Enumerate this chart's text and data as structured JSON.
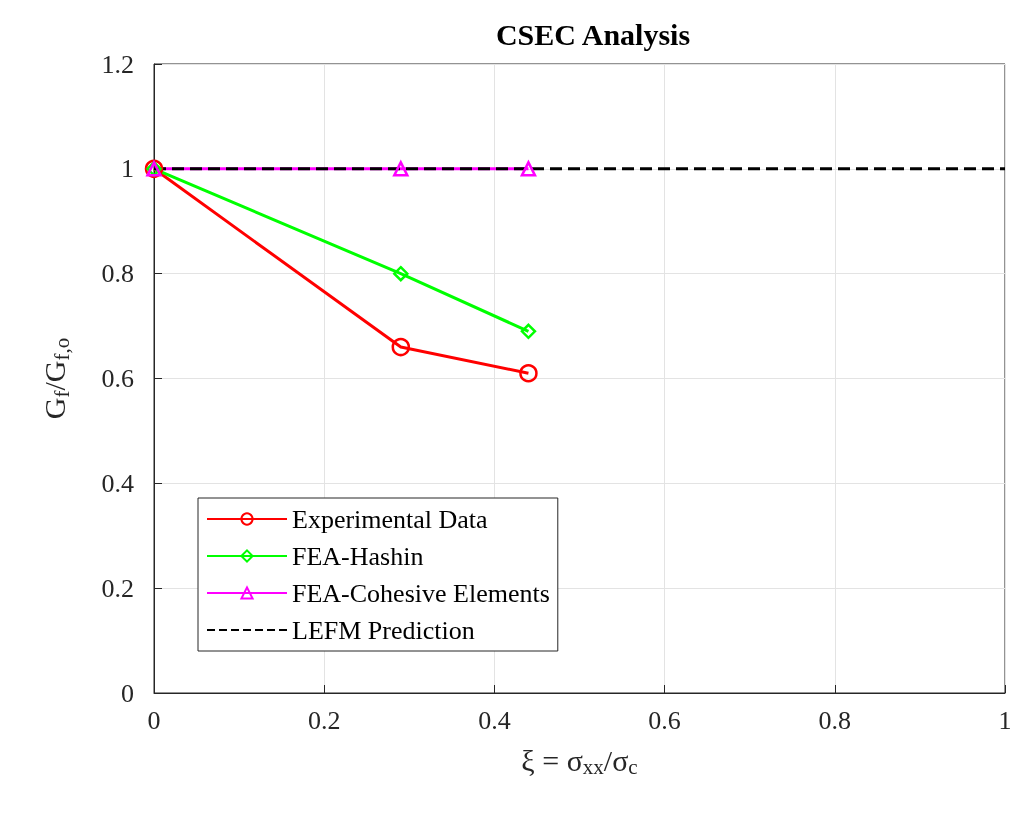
{
  "chart_data": {
    "type": "line",
    "title": "CSEC Analysis",
    "xlabel": "ξ = σ$_{xx}$/σ$_{c}$",
    "ylabel": "G$_{f}$/G$_{f,o}$",
    "xlim": [
      0,
      1
    ],
    "xticks": [
      0,
      0.2,
      0.4,
      0.6,
      0.8,
      1
    ],
    "ylim": [
      0,
      1.2
    ],
    "yticks": [
      0,
      0.2,
      0.4,
      0.6,
      0.8,
      1,
      1.2
    ],
    "grid": true,
    "legend": "bottom left",
    "series": [
      {
        "name": "Experimental Data",
        "color": "#ff0000",
        "x": [
          0,
          0.29,
          0.44
        ],
        "values": [
          1,
          0.66,
          0.61
        ],
        "marker": "circle"
      },
      {
        "name": "FEA-Hashin",
        "color": "#00ff00",
        "x": [
          0,
          0.29,
          0.44
        ],
        "values": [
          1,
          0.8,
          0.69
        ],
        "marker": "diamond"
      },
      {
        "name": "FEA-Cohesive Elements",
        "color": "#ff00ff",
        "x": [
          0,
          0.29,
          0.44
        ],
        "values": [
          1,
          1,
          1
        ],
        "marker": "triangle"
      },
      {
        "name": "LEFM Prediction",
        "color": "#000000",
        "x": [
          0,
          1
        ],
        "values": [
          1,
          1
        ],
        "marker": "none",
        "line_style": "dashed"
      }
    ]
  }
}
